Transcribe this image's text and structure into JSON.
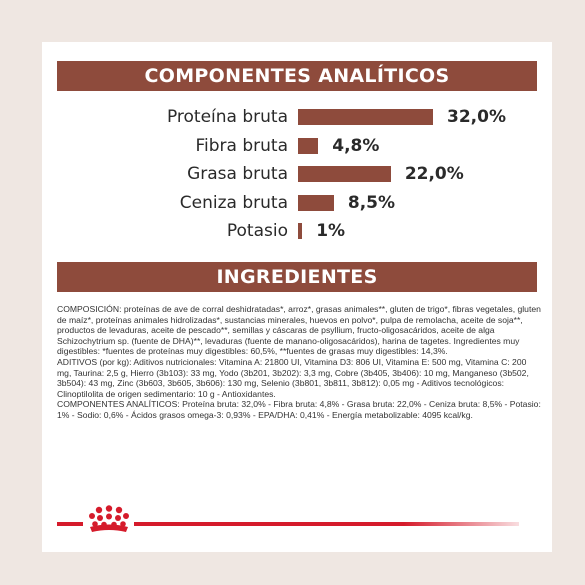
{
  "analytic": {
    "title": "COMPONENTES ANALÍTICOS",
    "items": [
      {
        "label": "Proteína bruta",
        "value": "32,0%",
        "percent": 32.0
      },
      {
        "label": "Fibra bruta",
        "value": "4,8%",
        "percent": 4.8
      },
      {
        "label": "Grasa bruta",
        "value": "22,0%",
        "percent": 22.0
      },
      {
        "label": "Ceniza bruta",
        "value": "8,5%",
        "percent": 8.5
      },
      {
        "label": "Potasio",
        "value": "1%",
        "percent": 1.0
      }
    ]
  },
  "ingredients": {
    "title": "INGREDIENTES",
    "composition": "COMPOSICIÓN: proteínas de ave de corral deshidratadas*, arroz*, grasas animales**, gluten de trigo*, fibras vegetales, gluten de maíz*, proteínas animales hidrolizadas*, sustancias minerales, huevos en polvo*, pulpa de remolacha, aceite de soja**, productos de levaduras, aceite de pescado**, semillas y cáscaras de psyllium, fructo-oligosacáridos, aceite de alga Schizochytrium sp. (fuente de DHA)**, levaduras (fuente de manano-oligosacáridos), harina de tagetes. Ingredientes muy digestibles: *fuentes de proteínas muy digestibles: 60,5%, **fuentes de grasas muy digestibles: 14,3%.",
    "additives": "ADITIVOS (por kg): Aditivos nutricionales: Vitamina A: 21800 UI, Vitamina D3: 806 UI, Vitamina E: 500 mg, Vitamina C: 200 mg, Taurina: 2,5 g, Hierro (3b103): 33 mg, Yodo (3b201, 3b202): 3,3 mg, Cobre (3b405, 3b406): 10 mg, Manganeso (3b502, 3b504): 43 mg, Zinc (3b603, 3b605, 3b606): 130 mg, Selenio (3b801, 3b811, 3b812): 0,05 mg - Aditivos tecnológicos: Clinoptilolita de origen sedimentario: 10 g - Antioxidantes.",
    "analytic_text": "COMPONENTES ANALÍTICOS: Proteína bruta: 32,0% - Fibra bruta: 4,8% - Grasa bruta: 22,0% - Ceniza bruta: 8,5% - Potasio: 1% - Sodio: 0,6% - Ácidos grasos omega-3: 0,93% - EPA/DHA: 0,41% - Energía metabolizable: 4095 kcal/kg."
  },
  "colors": {
    "brand_brown": "#8e4b3c",
    "brand_red": "#d51b2b",
    "background": "#efe7e2"
  },
  "logo": {
    "icon": "royal-canin-crown-icon"
  }
}
